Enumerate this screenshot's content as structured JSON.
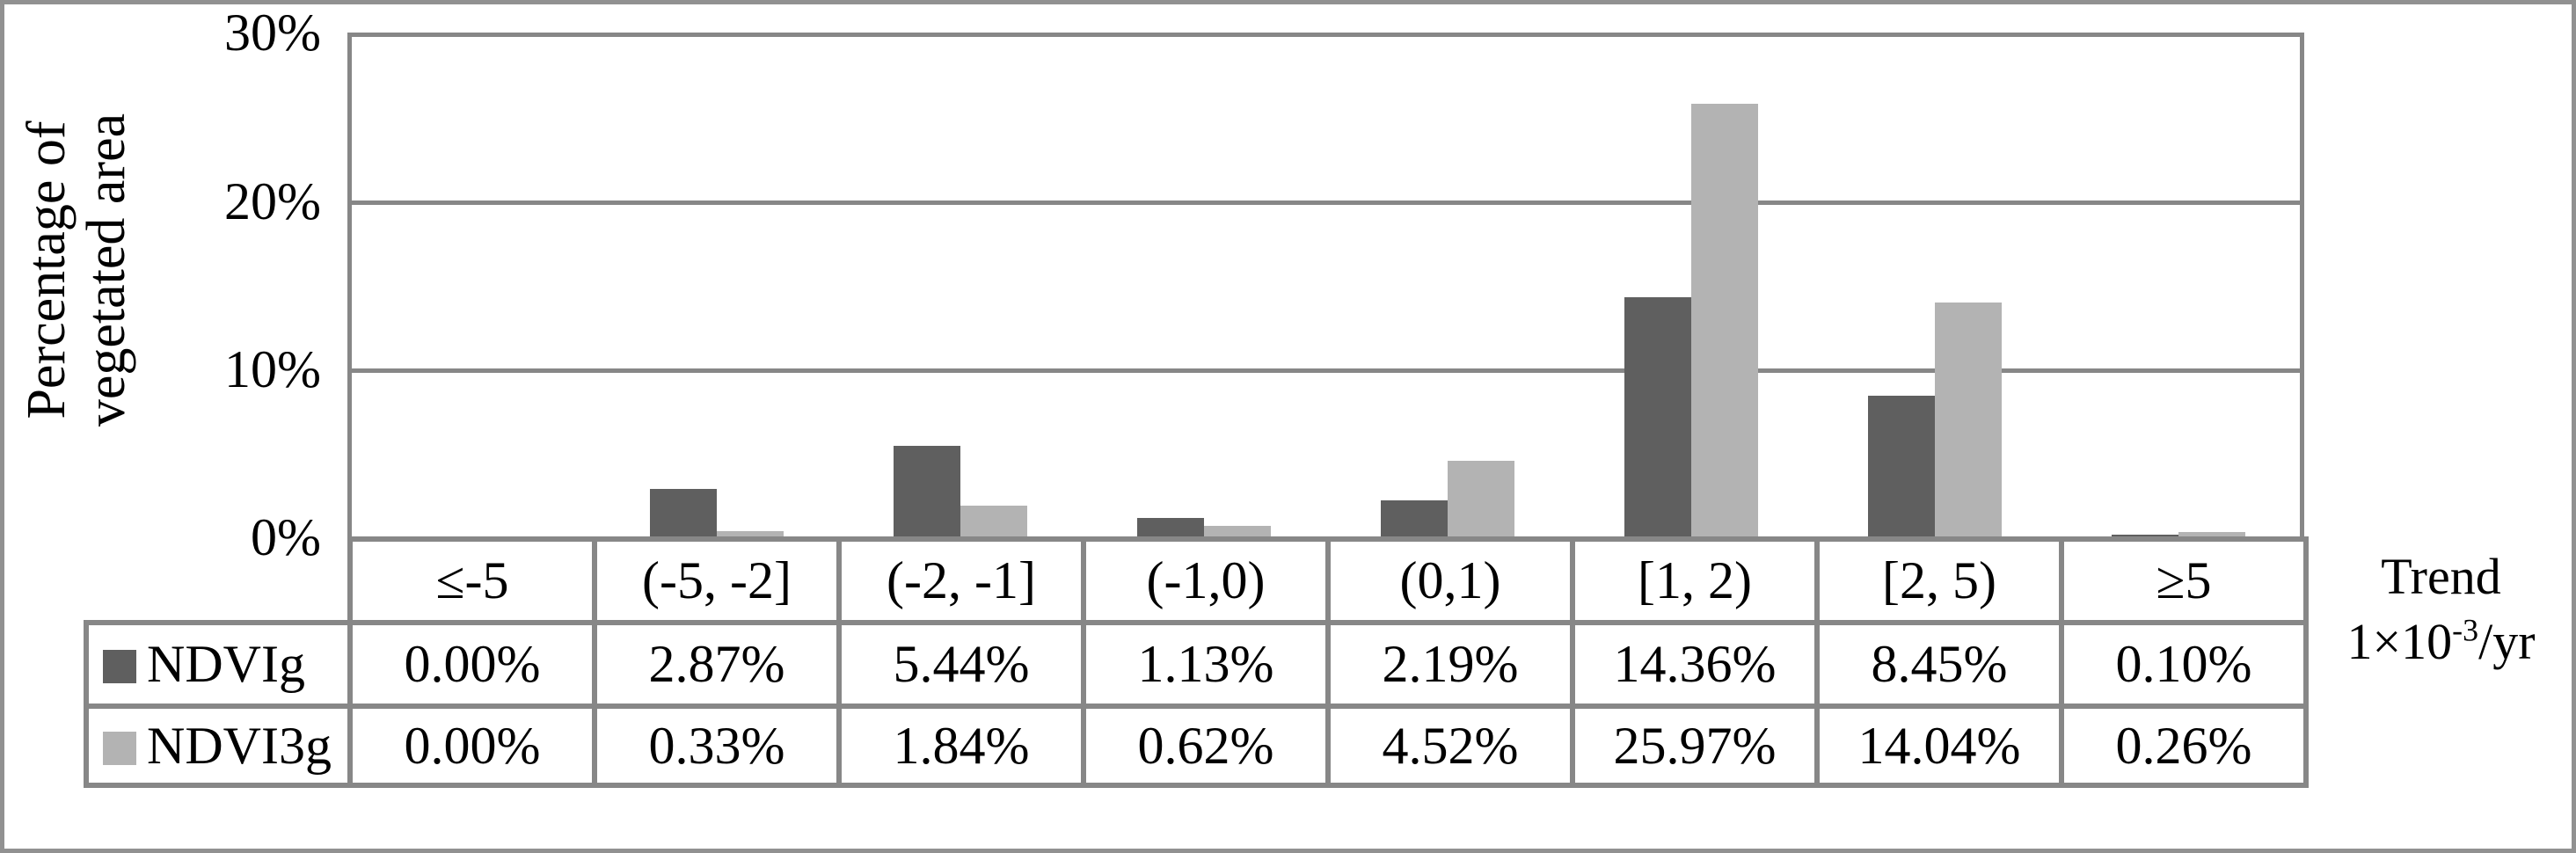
{
  "chart_data": {
    "type": "bar",
    "title": "",
    "ylabel": "Percentage of vegetated area",
    "ylabel_lines": [
      "Percentage of",
      "vegetated area"
    ],
    "xlabel": "Trend 1×10⁻³/yr",
    "x_unit": {
      "line1": "Trend",
      "base": "1×10",
      "exponent": "-3",
      "suffix": "/yr"
    },
    "categories": [
      "≤-5",
      "(-5, -2]",
      "(-2, -1]",
      "(-1,0)",
      "(0,1)",
      "[1, 2)",
      "[2, 5)",
      "≥5"
    ],
    "series": [
      {
        "name": "NDVIg",
        "color": "#5f5f5f",
        "values": [
          0.0,
          2.87,
          5.44,
          1.13,
          2.19,
          14.36,
          8.45,
          0.1
        ],
        "labels": [
          "0.00%",
          "2.87%",
          "5.44%",
          "1.13%",
          "2.19%",
          "14.36%",
          "8.45%",
          "0.10%"
        ]
      },
      {
        "name": "NDVI3g",
        "color": "#b3b3b3",
        "values": [
          0.0,
          0.33,
          1.84,
          0.62,
          4.52,
          25.97,
          14.04,
          0.26
        ],
        "labels": [
          "0.00%",
          "0.33%",
          "1.84%",
          "0.62%",
          "4.52%",
          "25.97%",
          "14.04%",
          "0.26%"
        ]
      }
    ],
    "ylim": [
      0,
      30
    ],
    "yticks": [
      "30%",
      "20%",
      "10%",
      "0%"
    ],
    "grid": true,
    "legend_position": "table-left-column"
  },
  "colors": {
    "grid": "#878787",
    "table_border": "#878787",
    "figure_border": "#919191",
    "background": "#ffffff"
  }
}
